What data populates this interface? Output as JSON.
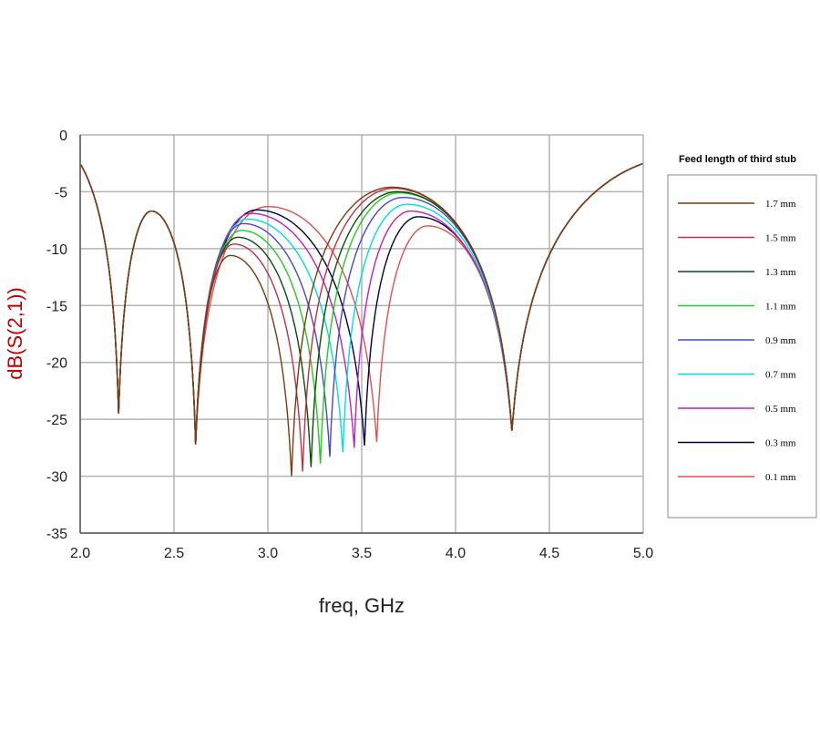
{
  "chart_data": {
    "type": "line",
    "title": "",
    "xlabel": "freq, GHz",
    "ylabel": "dB(S(2,1))",
    "xlim": [
      2.0,
      5.0
    ],
    "ylim": [
      -35,
      0
    ],
    "xticks": [
      "2.0",
      "2.5",
      "3.0",
      "3.5",
      "4.0",
      "4.5",
      "5.0"
    ],
    "xtick_values": [
      2.0,
      2.5,
      3.0,
      3.5,
      4.0,
      4.5,
      5.0
    ],
    "yticks": [
      "0",
      "-5",
      "-10",
      "-15",
      "-20",
      "-25",
      "-30",
      "-35"
    ],
    "ytick_values": [
      0,
      -5,
      -10,
      -15,
      -20,
      -25,
      -30,
      -35
    ],
    "grid": true,
    "ylabel_color": "#c00000",
    "legend": {
      "title": "Feed length of third stub",
      "placement": "right"
    },
    "common_extrema": {
      "start": [
        2.0,
        -2.7
      ],
      "dip_1": [
        2.205,
        -24.5
      ],
      "peak_1": [
        2.38,
        -6.7
      ],
      "dip_2": [
        2.615,
        -27.2
      ],
      "dip_4": [
        4.3,
        -26.0
      ],
      "end": [
        5.0,
        -2.8
      ]
    },
    "series": [
      {
        "name": "1.7 mm",
        "color": "#7a3b10",
        "left_peak": [
          2.8,
          -10.6
        ],
        "dip": [
          3.126,
          -30.0
        ],
        "right_peak": [
          3.66,
          -4.6
        ]
      },
      {
        "name": "1.5 mm",
        "color": "#c0304a",
        "left_peak": [
          2.82,
          -9.6
        ],
        "dip": [
          3.185,
          -29.6
        ],
        "right_peak": [
          3.67,
          -4.7
        ]
      },
      {
        "name": "1.3 mm",
        "color": "#0b4d0b",
        "left_peak": [
          2.84,
          -9.0
        ],
        "dip": [
          3.23,
          -29.2
        ],
        "right_peak": [
          3.69,
          -5.0
        ]
      },
      {
        "name": "1.1 mm",
        "color": "#22cc22",
        "left_peak": [
          2.86,
          -8.4
        ],
        "dip": [
          3.28,
          -28.9
        ],
        "right_peak": [
          3.7,
          -5.1
        ]
      },
      {
        "name": "0.9 mm",
        "color": "#4848c8",
        "left_peak": [
          2.87,
          -7.8
        ],
        "dip": [
          3.33,
          -28.3
        ],
        "right_peak": [
          3.72,
          -5.5
        ]
      },
      {
        "name": "0.7 mm",
        "color": "#00dede",
        "left_peak": [
          2.89,
          -7.4
        ],
        "dip": [
          3.4,
          -27.9
        ],
        "right_peak": [
          3.74,
          -6.1
        ]
      },
      {
        "name": "0.5 mm",
        "color": "#c020c0",
        "left_peak": [
          2.91,
          -6.9
        ],
        "dip": [
          3.46,
          -27.5
        ],
        "right_peak": [
          3.76,
          -6.7
        ]
      },
      {
        "name": "0.3 mm",
        "color": "#000040",
        "left_peak": [
          2.94,
          -6.6
        ],
        "dip": [
          3.515,
          -27.3
        ],
        "right_peak": [
          3.8,
          -7.2
        ]
      },
      {
        "name": "0.1 mm",
        "color": "#e05050",
        "left_peak": [
          3.0,
          -6.3
        ],
        "dip": [
          3.58,
          -27.0
        ],
        "right_peak": [
          3.85,
          -8.0
        ]
      }
    ]
  }
}
